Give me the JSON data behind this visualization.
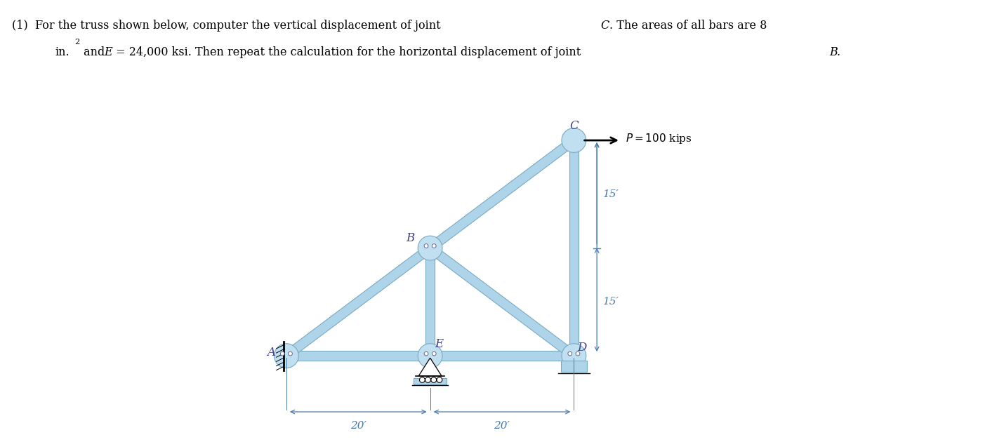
{
  "bar_color": "#aed4ea",
  "bar_edge_color": "#7aaac0",
  "gusset_color": "#c0dff0",
  "bg_color": "#ffffff",
  "dim_color": "#4a7aaa",
  "node_label_color": "#444488",
  "bar_width": 1.3,
  "A": [
    0,
    0
  ],
  "E": [
    20,
    0
  ],
  "B": [
    20,
    15
  ],
  "D": [
    40,
    0
  ],
  "C": [
    40,
    30
  ],
  "xlim": [
    -8,
    68
  ],
  "ylim": [
    -12,
    36
  ]
}
